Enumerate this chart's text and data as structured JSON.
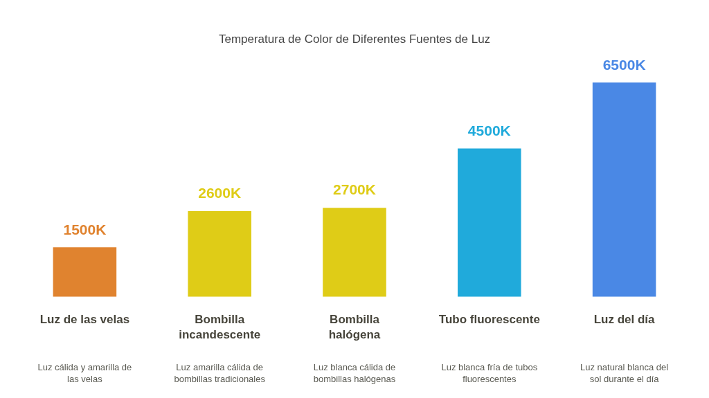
{
  "chart_data": {
    "type": "bar",
    "title": "Temperatura de Color de Diferentes Fuentes de Luz",
    "categories": [
      "Luz de las velas",
      "Bombilla incandescente",
      "Bombilla halógena",
      "Tubo fluorescente",
      "Luz del día"
    ],
    "values": [
      1500,
      2600,
      2700,
      4500,
      6500
    ],
    "colors": [
      "#e0832f",
      "#dfcc17",
      "#dfcc17",
      "#20aadb",
      "#4a88e5"
    ],
    "value_labels": [
      "1500K",
      "2600K",
      "2700K",
      "4500K",
      "6500K"
    ],
    "tick_labels": "x",
    "annotations": [
      "Luz cálida y amarilla de las velas",
      "Luz amarilla cálida de bombillas tradicionales",
      "Luz blanca cálida de bombillas halógenas",
      "Luz blanca fría de tubos fluorescentes",
      "Luz natural blanca del sol durante el día"
    ]
  }
}
